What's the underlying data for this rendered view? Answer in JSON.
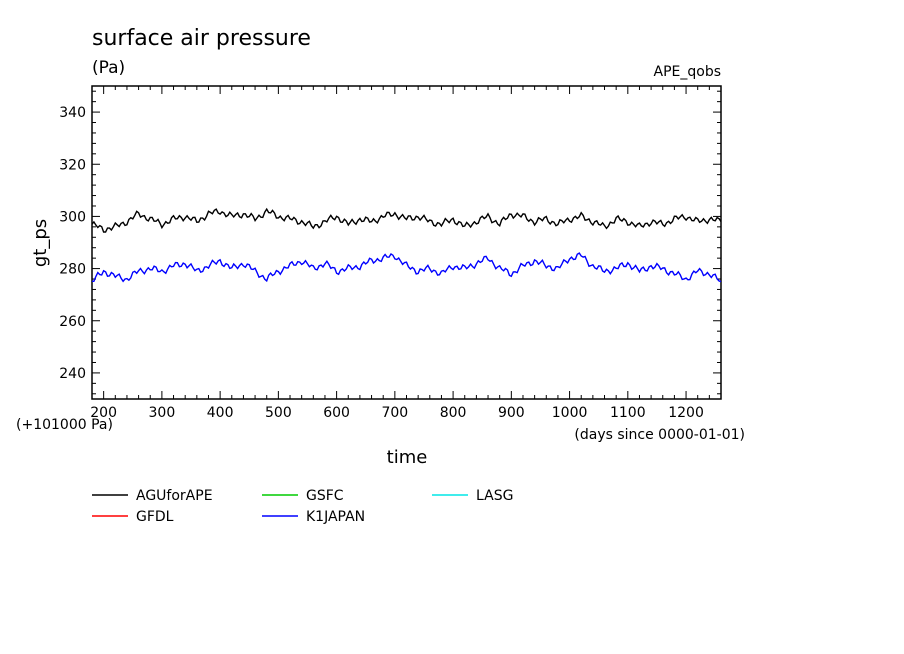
{
  "chart_data": {
    "type": "line",
    "title": "surface air pressure",
    "units": "(Pa)",
    "experiment": "APE_qobs",
    "xlabel": "time",
    "ylabel": "gt_ps",
    "x_units": "(days since 0000-01-01)",
    "y_offset_label": "(+101000 Pa)",
    "xlim": [
      180,
      1260
    ],
    "ylim": [
      230,
      350
    ],
    "xticks": [
      "200",
      "300",
      "400",
      "500",
      "600",
      "700",
      "800",
      "900",
      "1000",
      "1100",
      "1200"
    ],
    "yticks": [
      "240",
      "260",
      "280",
      "300",
      "320",
      "340"
    ],
    "series": [
      {
        "name": "AGUforAPE",
        "color": "#000000",
        "x": [
          180,
          200,
          220,
          240,
          260,
          280,
          300,
          320,
          340,
          360,
          380,
          400,
          420,
          440,
          460,
          480,
          500,
          520,
          540,
          560,
          580,
          600,
          620,
          640,
          660,
          680,
          700,
          720,
          740,
          760,
          780,
          800,
          820,
          840,
          860,
          880,
          900,
          920,
          940,
          960,
          980,
          1000,
          1020,
          1040,
          1060,
          1080,
          1100,
          1120,
          1140,
          1160,
          1180,
          1200,
          1220,
          1240,
          1260
        ],
        "values": [
          297,
          295,
          296,
          298,
          301,
          299,
          297,
          299,
          300,
          298,
          301,
          302,
          300,
          301,
          299,
          302,
          300,
          299,
          298,
          296,
          298,
          300,
          297,
          299,
          298,
          300,
          301,
          299,
          300,
          298,
          297,
          299,
          296,
          298,
          300,
          297,
          301,
          300,
          298,
          299,
          297,
          299,
          300,
          298,
          296,
          299,
          298,
          296,
          298,
          297,
          299,
          300,
          298,
          299,
          298
        ]
      },
      {
        "name": "GFDL",
        "color": "#ff0000",
        "x": [],
        "values": []
      },
      {
        "name": "GSFC",
        "color": "#00cc00",
        "x": [],
        "values": []
      },
      {
        "name": "K1JAPAN",
        "color": "#0000ff",
        "x": [
          180,
          200,
          220,
          240,
          260,
          280,
          300,
          320,
          340,
          360,
          380,
          400,
          420,
          440,
          460,
          480,
          500,
          520,
          540,
          560,
          580,
          600,
          620,
          640,
          660,
          680,
          700,
          720,
          740,
          760,
          780,
          800,
          820,
          840,
          860,
          880,
          900,
          920,
          940,
          960,
          980,
          1000,
          1020,
          1040,
          1060,
          1080,
          1100,
          1120,
          1140,
          1160,
          1180,
          1200,
          1220,
          1240,
          1260
        ],
        "values": [
          275,
          279,
          277,
          276,
          279,
          280,
          279,
          281,
          282,
          279,
          281,
          283,
          280,
          282,
          279,
          276,
          279,
          281,
          283,
          280,
          282,
          279,
          280,
          281,
          283,
          284,
          285,
          281,
          279,
          280,
          278,
          281,
          280,
          282,
          284,
          280,
          278,
          281,
          283,
          281,
          280,
          284,
          285,
          281,
          279,
          280,
          282,
          279,
          281,
          280,
          278,
          276,
          279,
          278,
          275
        ]
      },
      {
        "name": "LASG",
        "color": "#00e5e5",
        "x": [],
        "values": []
      }
    ],
    "legend_placement": "bottom"
  }
}
